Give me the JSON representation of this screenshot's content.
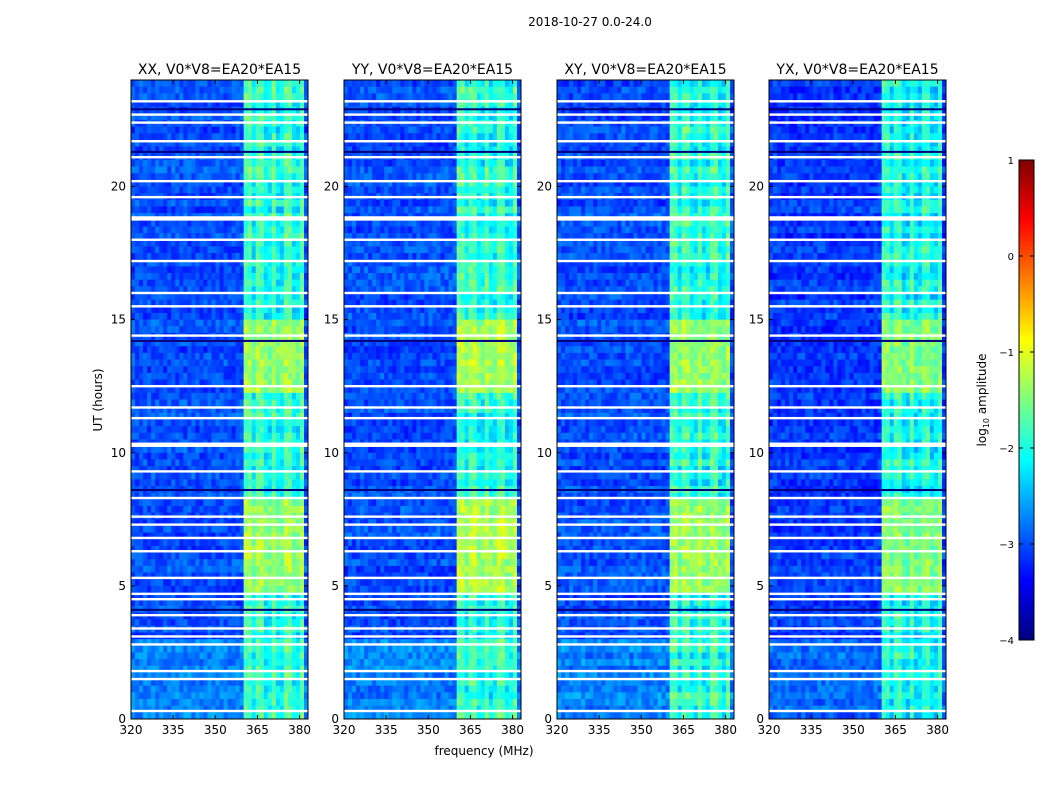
{
  "figure_title": "2018-10-27 0.0-24.0",
  "chart_data": {
    "type": "heatmap",
    "xlabel": "frequency (MHz)",
    "ylabel": "UT (hours)",
    "xlim": [
      320,
      383
    ],
    "ylim": [
      0,
      24
    ],
    "x_ticks": [
      320,
      335,
      350,
      365,
      380
    ],
    "y_ticks": [
      0,
      5,
      10,
      15,
      20
    ],
    "colorbar": {
      "label_prefix": "log",
      "label_sub": "10",
      "label_suffix": " amplitude",
      "range": [
        -4,
        1
      ],
      "ticks": [
        1,
        0,
        -1,
        -2,
        -3,
        -4
      ],
      "colormap": "jet",
      "colors": [
        "#00007f",
        "#0000ff",
        "#007fff",
        "#00ffff",
        "#7fff7f",
        "#ffff00",
        "#ff7f00",
        "#ff0000",
        "#7f0000"
      ]
    },
    "panels": [
      {
        "title": "XX, V0*V8=EA20*EA15",
        "band_mhz": [
          360,
          383
        ],
        "background_level": -3.0,
        "band_level": -2.0,
        "peak_level": -1.4
      },
      {
        "title": "YY, V0*V8=EA20*EA15",
        "band_mhz": [
          360,
          383
        ],
        "background_level": -3.0,
        "band_level": -2.0,
        "peak_level": -1.3
      },
      {
        "title": "XY, V0*V8=EA20*EA15",
        "band_mhz": [
          360,
          383
        ],
        "background_level": -3.0,
        "band_level": -2.0,
        "peak_level": -1.4
      },
      {
        "title": "YX, V0*V8=EA20*EA15",
        "band_mhz": [
          360,
          383
        ],
        "background_level": -3.1,
        "band_level": -2.1,
        "peak_level": -1.5
      }
    ],
    "flagged_ut_hours": [
      0.3,
      1.5,
      1.8,
      2.8,
      3.1,
      3.4,
      3.9,
      4.5,
      4.7,
      5.3,
      6.3,
      6.8,
      7.3,
      7.6,
      8.3,
      9.3,
      10.3,
      11.3,
      11.7,
      12.5,
      14.4,
      15.5,
      16.0,
      17.2,
      18.0,
      18.8,
      19.6,
      20.2,
      21.1,
      21.7,
      22.4,
      22.7,
      23.2
    ],
    "dark_ut_hours": [
      4.1,
      8.6,
      14.2,
      21.3,
      22.9
    ],
    "enhanced_ut_ranges": [
      [
        4.8,
        8.3
      ],
      [
        12.2,
        15.0
      ]
    ]
  }
}
